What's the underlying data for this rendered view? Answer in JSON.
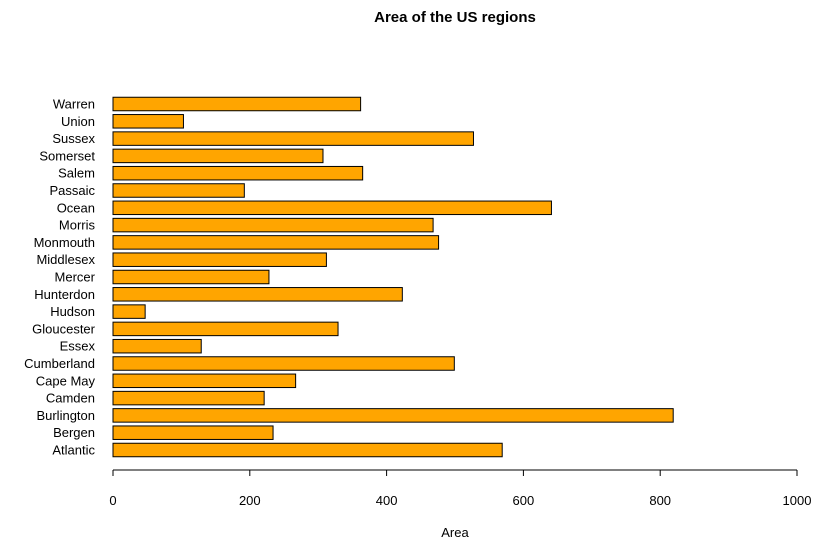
{
  "chart_data": {
    "type": "bar",
    "orientation": "horizontal",
    "title": "Area of the US regions",
    "xlabel": "Area",
    "ylabel": "",
    "xlim": [
      0,
      1000
    ],
    "x_ticks": [
      0,
      200,
      400,
      600,
      800,
      1000
    ],
    "grid": false,
    "bar_color": "#FFA500",
    "bar_border_color": "#000000",
    "categories": [
      "Atlantic",
      "Bergen",
      "Burlington",
      "Camden",
      "Cape May",
      "Cumberland",
      "Essex",
      "Gloucester",
      "Hudson",
      "Hunterdon",
      "Mercer",
      "Middlesex",
      "Monmouth",
      "Morris",
      "Ocean",
      "Passaic",
      "Salem",
      "Somerset",
      "Sussex",
      "Union",
      "Warren"
    ],
    "values": [
      569,
      234,
      819,
      221,
      267,
      499,
      129,
      329,
      47,
      423,
      228,
      312,
      476,
      468,
      641,
      192,
      365,
      307,
      527,
      103,
      362
    ]
  }
}
